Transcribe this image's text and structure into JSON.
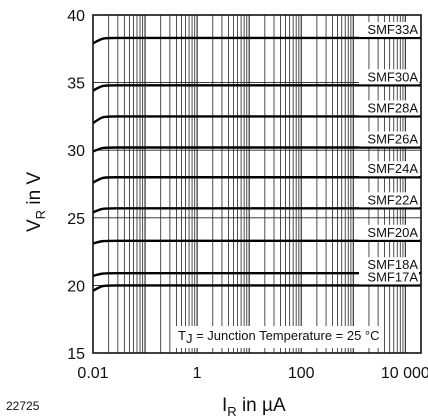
{
  "chart_data": {
    "type": "line",
    "x_scale": "log",
    "xlim": [
      0.01,
      20000
    ],
    "ylim": [
      15,
      40
    ],
    "x_ticks": [
      0.01,
      1,
      100,
      10000
    ],
    "x_tick_labels": [
      "0.01",
      "1",
      "100",
      "10 000"
    ],
    "y_ticks": [
      15,
      20,
      25,
      30,
      35,
      40
    ],
    "y_tick_labels": [
      "15",
      "20",
      "25",
      "30",
      "35",
      "40"
    ],
    "xlabel": {
      "main": "I",
      "sub": "R",
      "rest": " in µA"
    },
    "ylabel": {
      "main": "V",
      "sub": "R",
      "rest": " in V"
    },
    "grid": true,
    "annotation": {
      "main": "T",
      "sub": "J",
      "rest": " = Junction Temperature = 25 °C"
    },
    "figure_id": "22725",
    "series": [
      {
        "name": "SMF33A",
        "start": 37.9,
        "value": 38.3
      },
      {
        "name": "SMF30A",
        "start": 34.4,
        "value": 34.8
      },
      {
        "name": "SMF28A",
        "start": 32.0,
        "value": 32.5
      },
      {
        "name": "SMF26A",
        "start": 29.9,
        "value": 30.2
      },
      {
        "name": "SMF24A",
        "start": 27.6,
        "value": 28.0
      },
      {
        "name": "SMF22A",
        "start": 25.4,
        "value": 25.7
      },
      {
        "name": "SMF20A",
        "start": 23.1,
        "value": 23.3
      },
      {
        "name": "SMF18A",
        "start": 20.7,
        "value": 20.9
      },
      {
        "name": "SMF17A",
        "start": 19.6,
        "value": 20.0
      }
    ]
  }
}
